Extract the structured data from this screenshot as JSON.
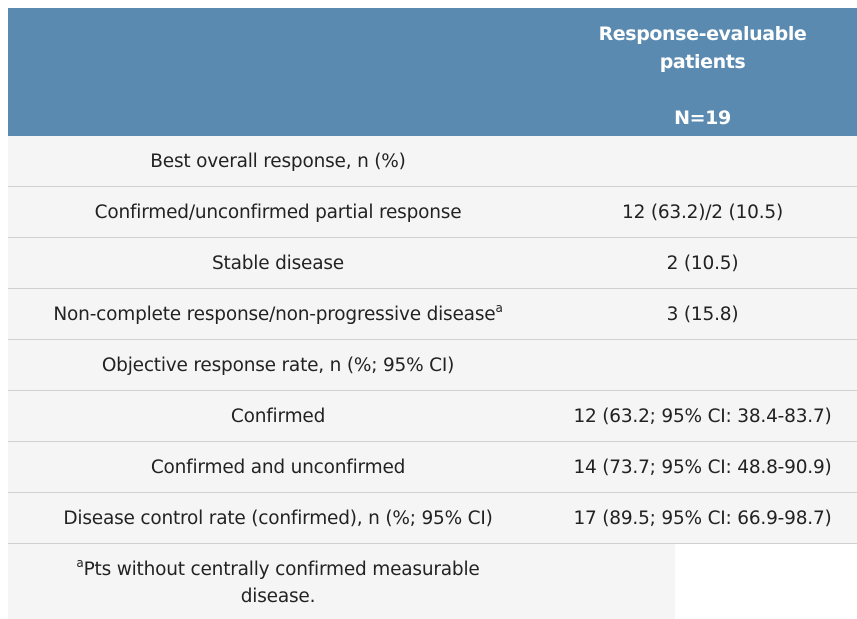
{
  "header": {
    "column_title_line1": "Response-evaluable",
    "column_title_line2": "patients",
    "n_label": "N=19"
  },
  "rows": [
    {
      "label": "Best overall response, n (%)",
      "sup": "",
      "value": ""
    },
    {
      "label": "Confirmed/unconfirmed partial response",
      "sup": "",
      "value": "12 (63.2)/2 (10.5)"
    },
    {
      "label": "Stable disease",
      "sup": "",
      "value": "2 (10.5)"
    },
    {
      "label": "Non-complete response/non-progressive disease",
      "sup": "a",
      "value": "3 (15.8)"
    },
    {
      "label": "Objective response rate, n (%; 95% CI)",
      "sup": "",
      "value": ""
    },
    {
      "label": "Confirmed",
      "sup": "",
      "value": "12 (63.2; 95% CI: 38.4-83.7)"
    },
    {
      "label": "Confirmed and unconfirmed",
      "sup": "",
      "value": "14 (73.7; 95% CI: 48.8-90.9)"
    },
    {
      "label": "Disease control rate (confirmed), n (%; 95% CI)",
      "sup": "",
      "value": "17 (89.5; 95% CI: 66.9-98.7)"
    }
  ],
  "footnote": {
    "marker": "a",
    "text": "Pts without centrally confirmed measurable disease."
  }
}
